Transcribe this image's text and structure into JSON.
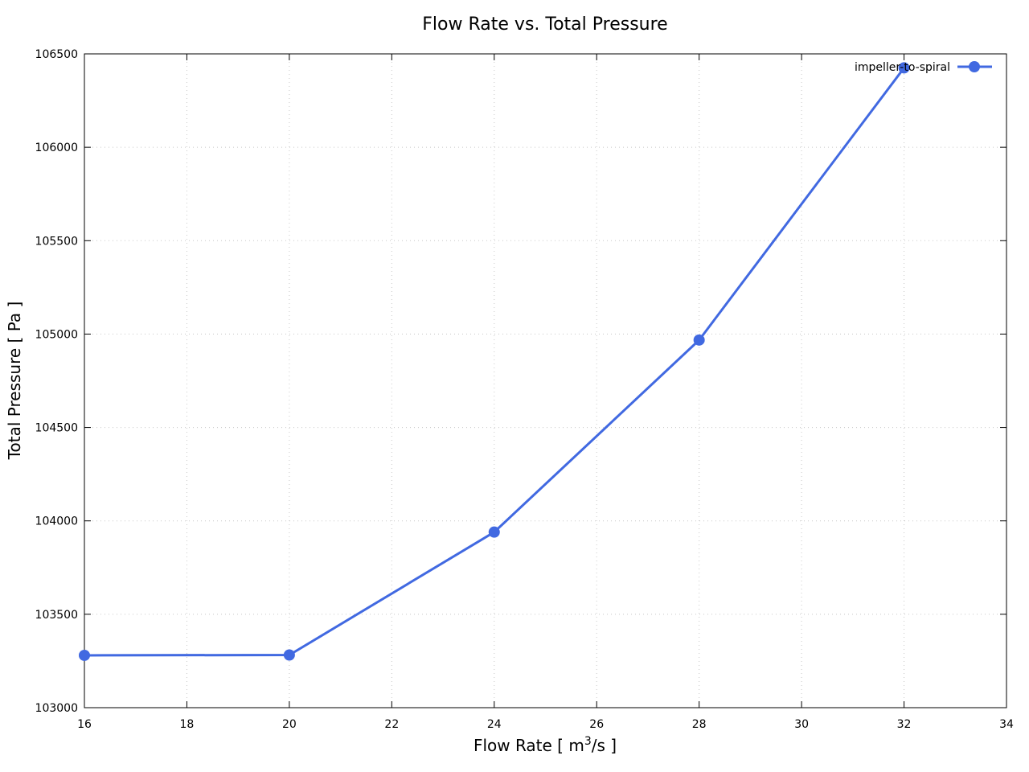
{
  "chart_data": {
    "type": "line",
    "title": "Flow Rate vs. Total Pressure",
    "xlabel_main": "Flow Rate [ m",
    "xlabel_sup": "3",
    "xlabel_tail": "/s ]",
    "ylabel": "Total Pressure [ Pa ]",
    "xlim": [
      16,
      34
    ],
    "ylim": [
      103000,
      106500
    ],
    "x_ticks": [
      16,
      18,
      20,
      22,
      24,
      26,
      28,
      30,
      32,
      34
    ],
    "y_ticks": [
      103000,
      103500,
      104000,
      104500,
      105000,
      105500,
      106000,
      106500
    ],
    "grid": true,
    "legend_position": "top-right",
    "series": [
      {
        "name": "impeller-to-spiral",
        "color": "#4169e1",
        "marker": "circle",
        "x": [
          16,
          20,
          24,
          28,
          32
        ],
        "y": [
          103280,
          103282,
          103940,
          104968,
          106425
        ]
      }
    ]
  }
}
